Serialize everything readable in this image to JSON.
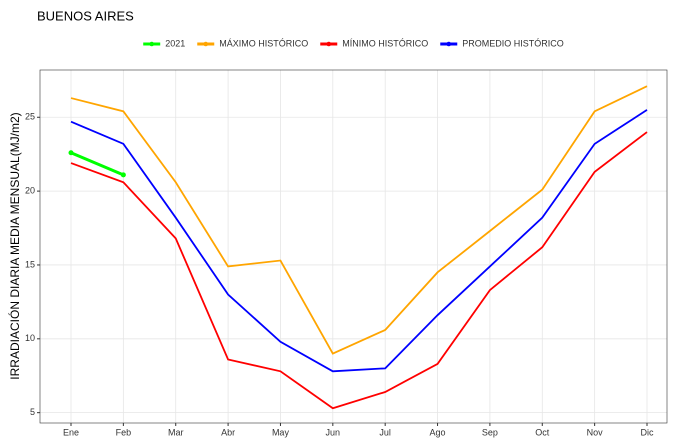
{
  "chart_data": {
    "type": "line",
    "title": "BUENOS AIRES",
    "y_label": "IRRADIACIÓN DIARIA MEDIA MENSUAL(MJ/m2)",
    "categories": [
      "Ene",
      "Feb",
      "Mar",
      "Abr",
      "May",
      "Jun",
      "Jul",
      "Ago",
      "Sep",
      "Oct",
      "Nov",
      "Dic"
    ],
    "series": [
      {
        "name": "2021",
        "color": "#00ff00",
        "values": [
          22.6,
          21.1,
          null,
          null,
          null,
          null,
          null,
          null,
          null,
          null,
          null,
          null
        ]
      },
      {
        "name": "MÁXIMO HISTÓRICO",
        "color": "#ffa500",
        "values": [
          26.3,
          25.4,
          20.6,
          14.9,
          15.3,
          9.0,
          10.6,
          14.5,
          17.3,
          20.1,
          25.4,
          27.1
        ]
      },
      {
        "name": "MÍNIMO HISTÓRICO",
        "color": "#ff0000",
        "values": [
          21.9,
          20.6,
          16.8,
          8.6,
          7.8,
          5.3,
          6.4,
          8.3,
          13.3,
          16.2,
          21.3,
          24.0
        ]
      },
      {
        "name": "PROMEDIO HISTÓRICO",
        "color": "#0000ff",
        "values": [
          24.7,
          23.2,
          18.2,
          13.0,
          9.8,
          7.8,
          8.0,
          11.6,
          14.9,
          18.2,
          23.2,
          25.5
        ]
      }
    ],
    "ylim": [
      4.3,
      28.2
    ],
    "yticks": [
      5,
      10,
      15,
      20,
      25
    ],
    "grid": true,
    "legend": "top"
  }
}
